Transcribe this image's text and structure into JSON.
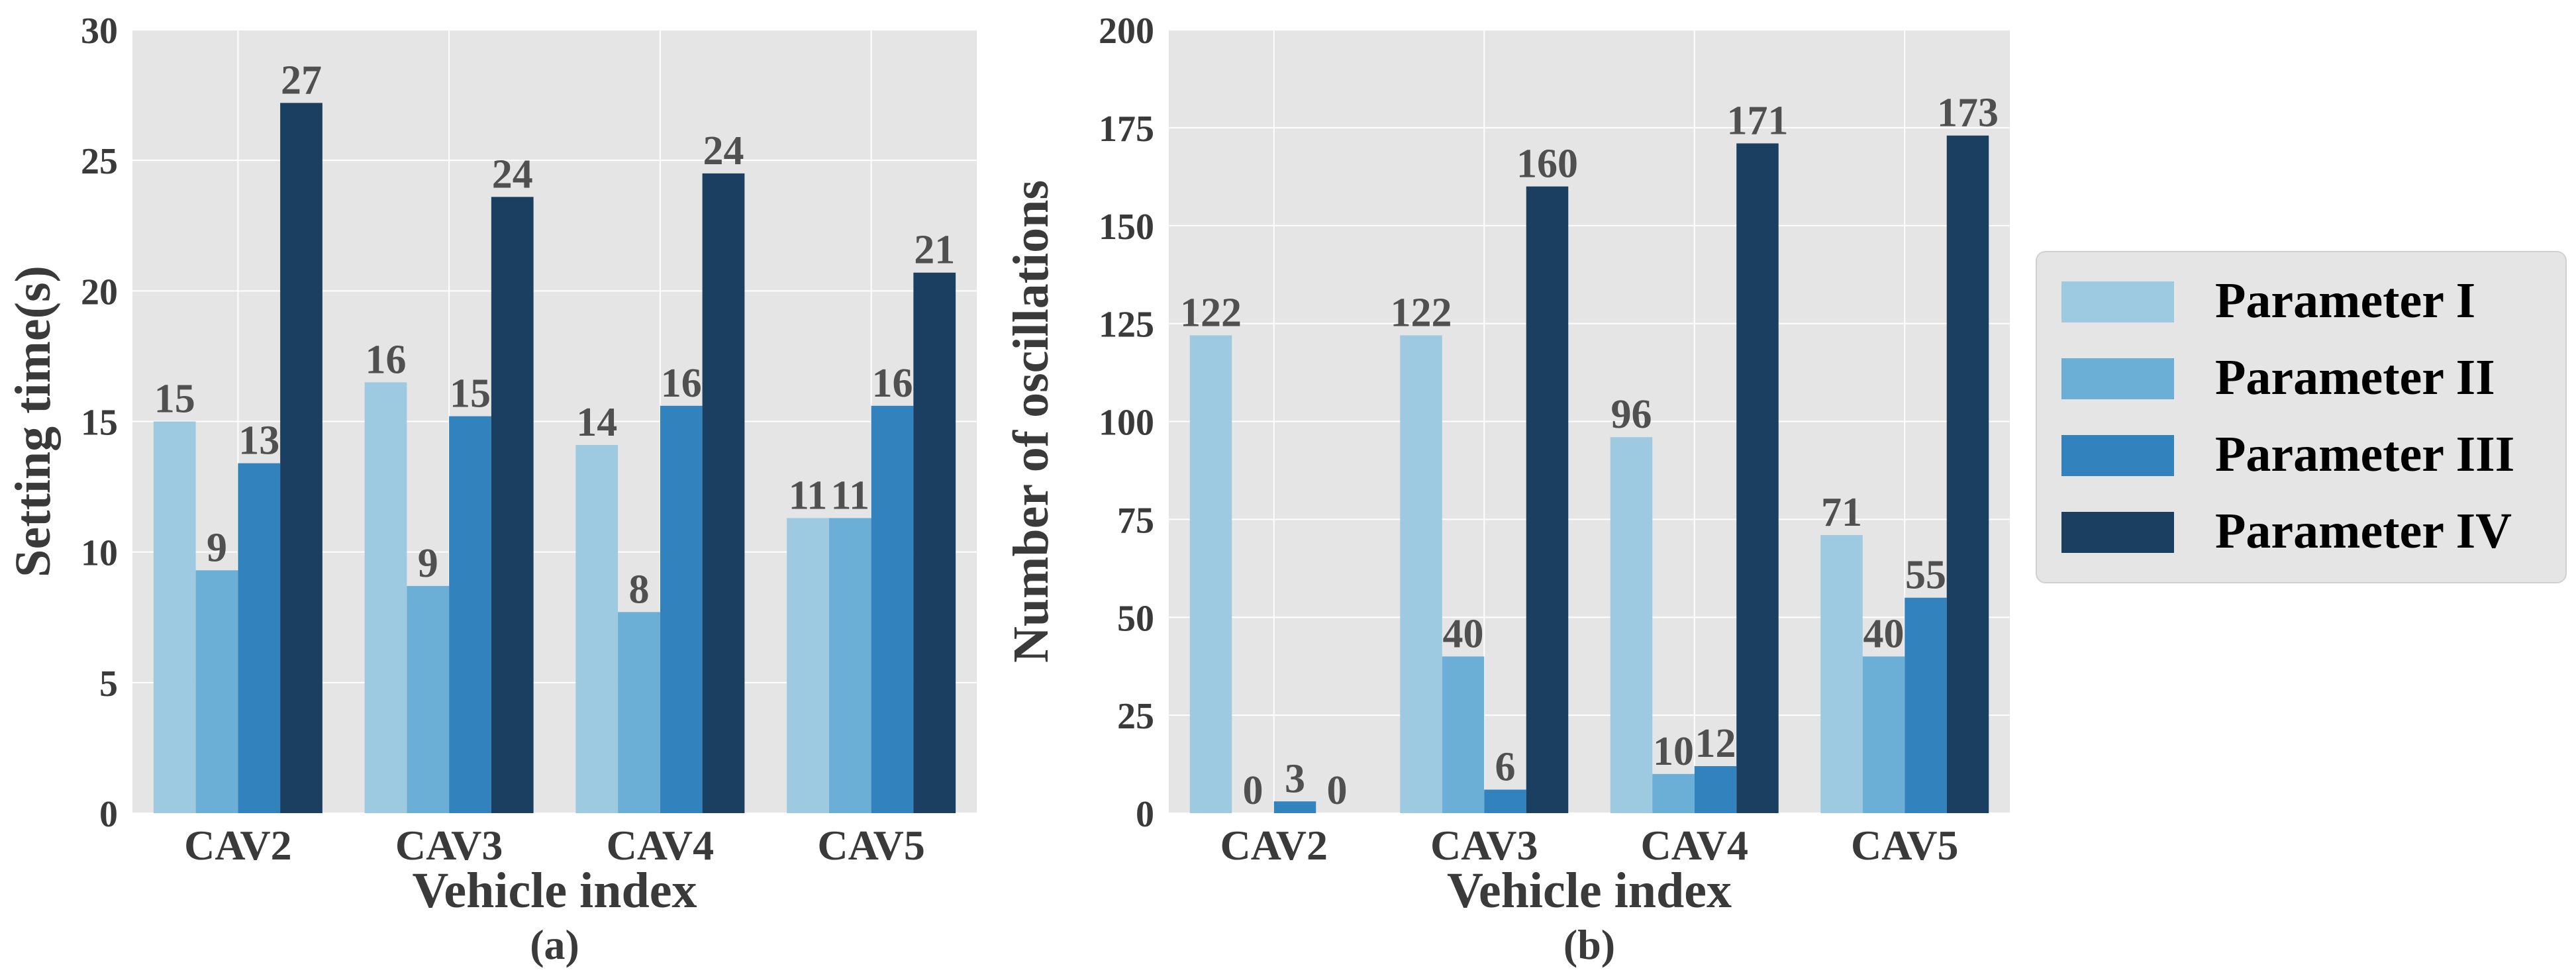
{
  "chart_data": [
    {
      "type": "bar",
      "panel_label": "(a)",
      "categories": [
        "CAV2",
        "CAV3",
        "CAV4",
        "CAV5"
      ],
      "xlabel": "Vehicle index",
      "ylabel": "Setting time(s)",
      "ylim": [
        0,
        30
      ],
      "yticks": [
        0,
        5,
        10,
        15,
        20,
        25,
        30
      ],
      "grid": true,
      "series": [
        {
          "name": "Parameter I",
          "values": [
            15.0,
            16.5,
            14.1,
            11.3
          ],
          "labels": [
            "15",
            "16",
            "14",
            "11"
          ]
        },
        {
          "name": "Parameter II",
          "values": [
            9.3,
            8.7,
            7.7,
            11.3
          ],
          "labels": [
            "9",
            "9",
            "8",
            "11"
          ]
        },
        {
          "name": "Parameter III",
          "values": [
            13.4,
            15.2,
            15.6,
            15.6
          ],
          "labels": [
            "13",
            "15",
            "16",
            "16"
          ]
        },
        {
          "name": "Parameter IV",
          "values": [
            27.2,
            23.6,
            24.5,
            20.7
          ],
          "labels": [
            "27",
            "24",
            "24",
            "21"
          ]
        }
      ]
    },
    {
      "type": "bar",
      "panel_label": "(b)",
      "categories": [
        "CAV2",
        "CAV3",
        "CAV4",
        "CAV5"
      ],
      "xlabel": "Vehicle index",
      "ylabel": "Number of oscillations",
      "ylim": [
        0,
        200
      ],
      "yticks": [
        0,
        25,
        50,
        75,
        100,
        125,
        150,
        175,
        200
      ],
      "grid": true,
      "series": [
        {
          "name": "Parameter I",
          "values": [
            122,
            122,
            96,
            71
          ],
          "labels": [
            "122",
            "122",
            "96",
            "71"
          ]
        },
        {
          "name": "Parameter II",
          "values": [
            0,
            40,
            10,
            40
          ],
          "labels": [
            "0",
            "40",
            "10",
            "40"
          ]
        },
        {
          "name": "Parameter III",
          "values": [
            3,
            6,
            12,
            55
          ],
          "labels": [
            "3",
            "6",
            "12",
            "55"
          ]
        },
        {
          "name": "Parameter IV",
          "values": [
            0,
            160,
            171,
            173
          ],
          "labels": [
            "0",
            "160",
            "171",
            "173"
          ]
        }
      ]
    }
  ],
  "legend": {
    "placement": "right",
    "entries": [
      "Parameter I",
      "Parameter II",
      "Parameter III",
      "Parameter IV"
    ]
  },
  "colors": {
    "series": [
      "#9ecae1",
      "#6baed6",
      "#3182bd",
      "#1b3f60"
    ],
    "plot_bg": "#e5e5e5",
    "grid": "#ffffff",
    "text": "#3a3a3a",
    "value_text": "#505050"
  }
}
